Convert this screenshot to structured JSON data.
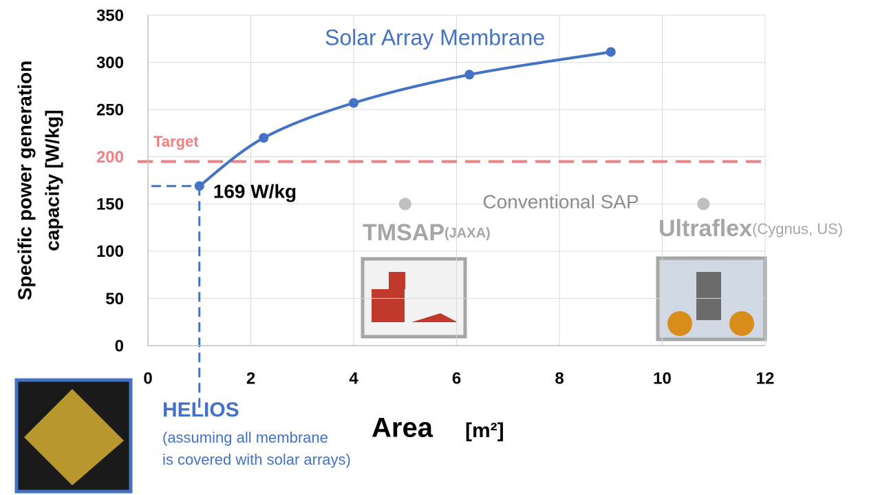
{
  "chart_data": {
    "type": "line",
    "x_label": "Area",
    "x_unit": "[m²]",
    "y_label": [
      "Specific power generation",
      "capacity [W/kg]"
    ],
    "xlim": [
      0,
      12
    ],
    "xticks": [
      0,
      2,
      4,
      6,
      8,
      10,
      12
    ],
    "ylim": [
      0,
      350
    ],
    "yticks": [
      0,
      50,
      100,
      150,
      200,
      250,
      300,
      350
    ],
    "grid": true,
    "series": [
      {
        "name": "Solar Array Membrane",
        "color": "#4472c4",
        "x": [
          1,
          2.25,
          4,
          6.25,
          9
        ],
        "values": [
          169,
          220,
          257,
          287,
          311
        ],
        "value_labels": [
          "169 W/kg",
          null,
          null,
          null,
          null
        ]
      },
      {
        "name": "Conventional SAP",
        "color": "#bfbfbf",
        "x": [
          5,
          10.8
        ],
        "values": [
          150,
          150
        ],
        "point_labels": [
          {
            "name": "TMSAP",
            "note": "(JAXA)"
          },
          {
            "name": "Ultraflex",
            "note": "(Cygnus, US)"
          }
        ]
      }
    ],
    "target": {
      "label": "Target",
      "value": 195,
      "color": "#f08080"
    },
    "helios": {
      "title": "HELIOS",
      "note": [
        "(assuming all membrane",
        "is covered with solar arrays)"
      ]
    }
  }
}
